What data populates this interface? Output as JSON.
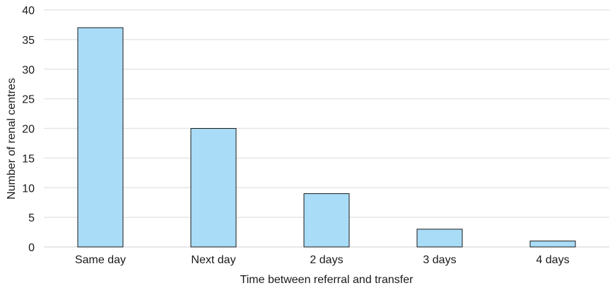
{
  "chart_data": {
    "type": "bar",
    "categories": [
      "Same day",
      "Next day",
      "2 days",
      "3 days",
      "4 days"
    ],
    "values": [
      37,
      20,
      9,
      3,
      1
    ],
    "title": "",
    "xlabel": "Time between referral and transfer",
    "ylabel": "Number of renal centres",
    "ylim": [
      0,
      40
    ],
    "yticks": [
      0,
      5,
      10,
      15,
      20,
      25,
      30,
      35,
      40
    ],
    "grid": true,
    "colors": {
      "bar_fill": "#a9dcf7",
      "bar_stroke": "#1a1a1a",
      "grid": "#e6e6e6"
    }
  }
}
